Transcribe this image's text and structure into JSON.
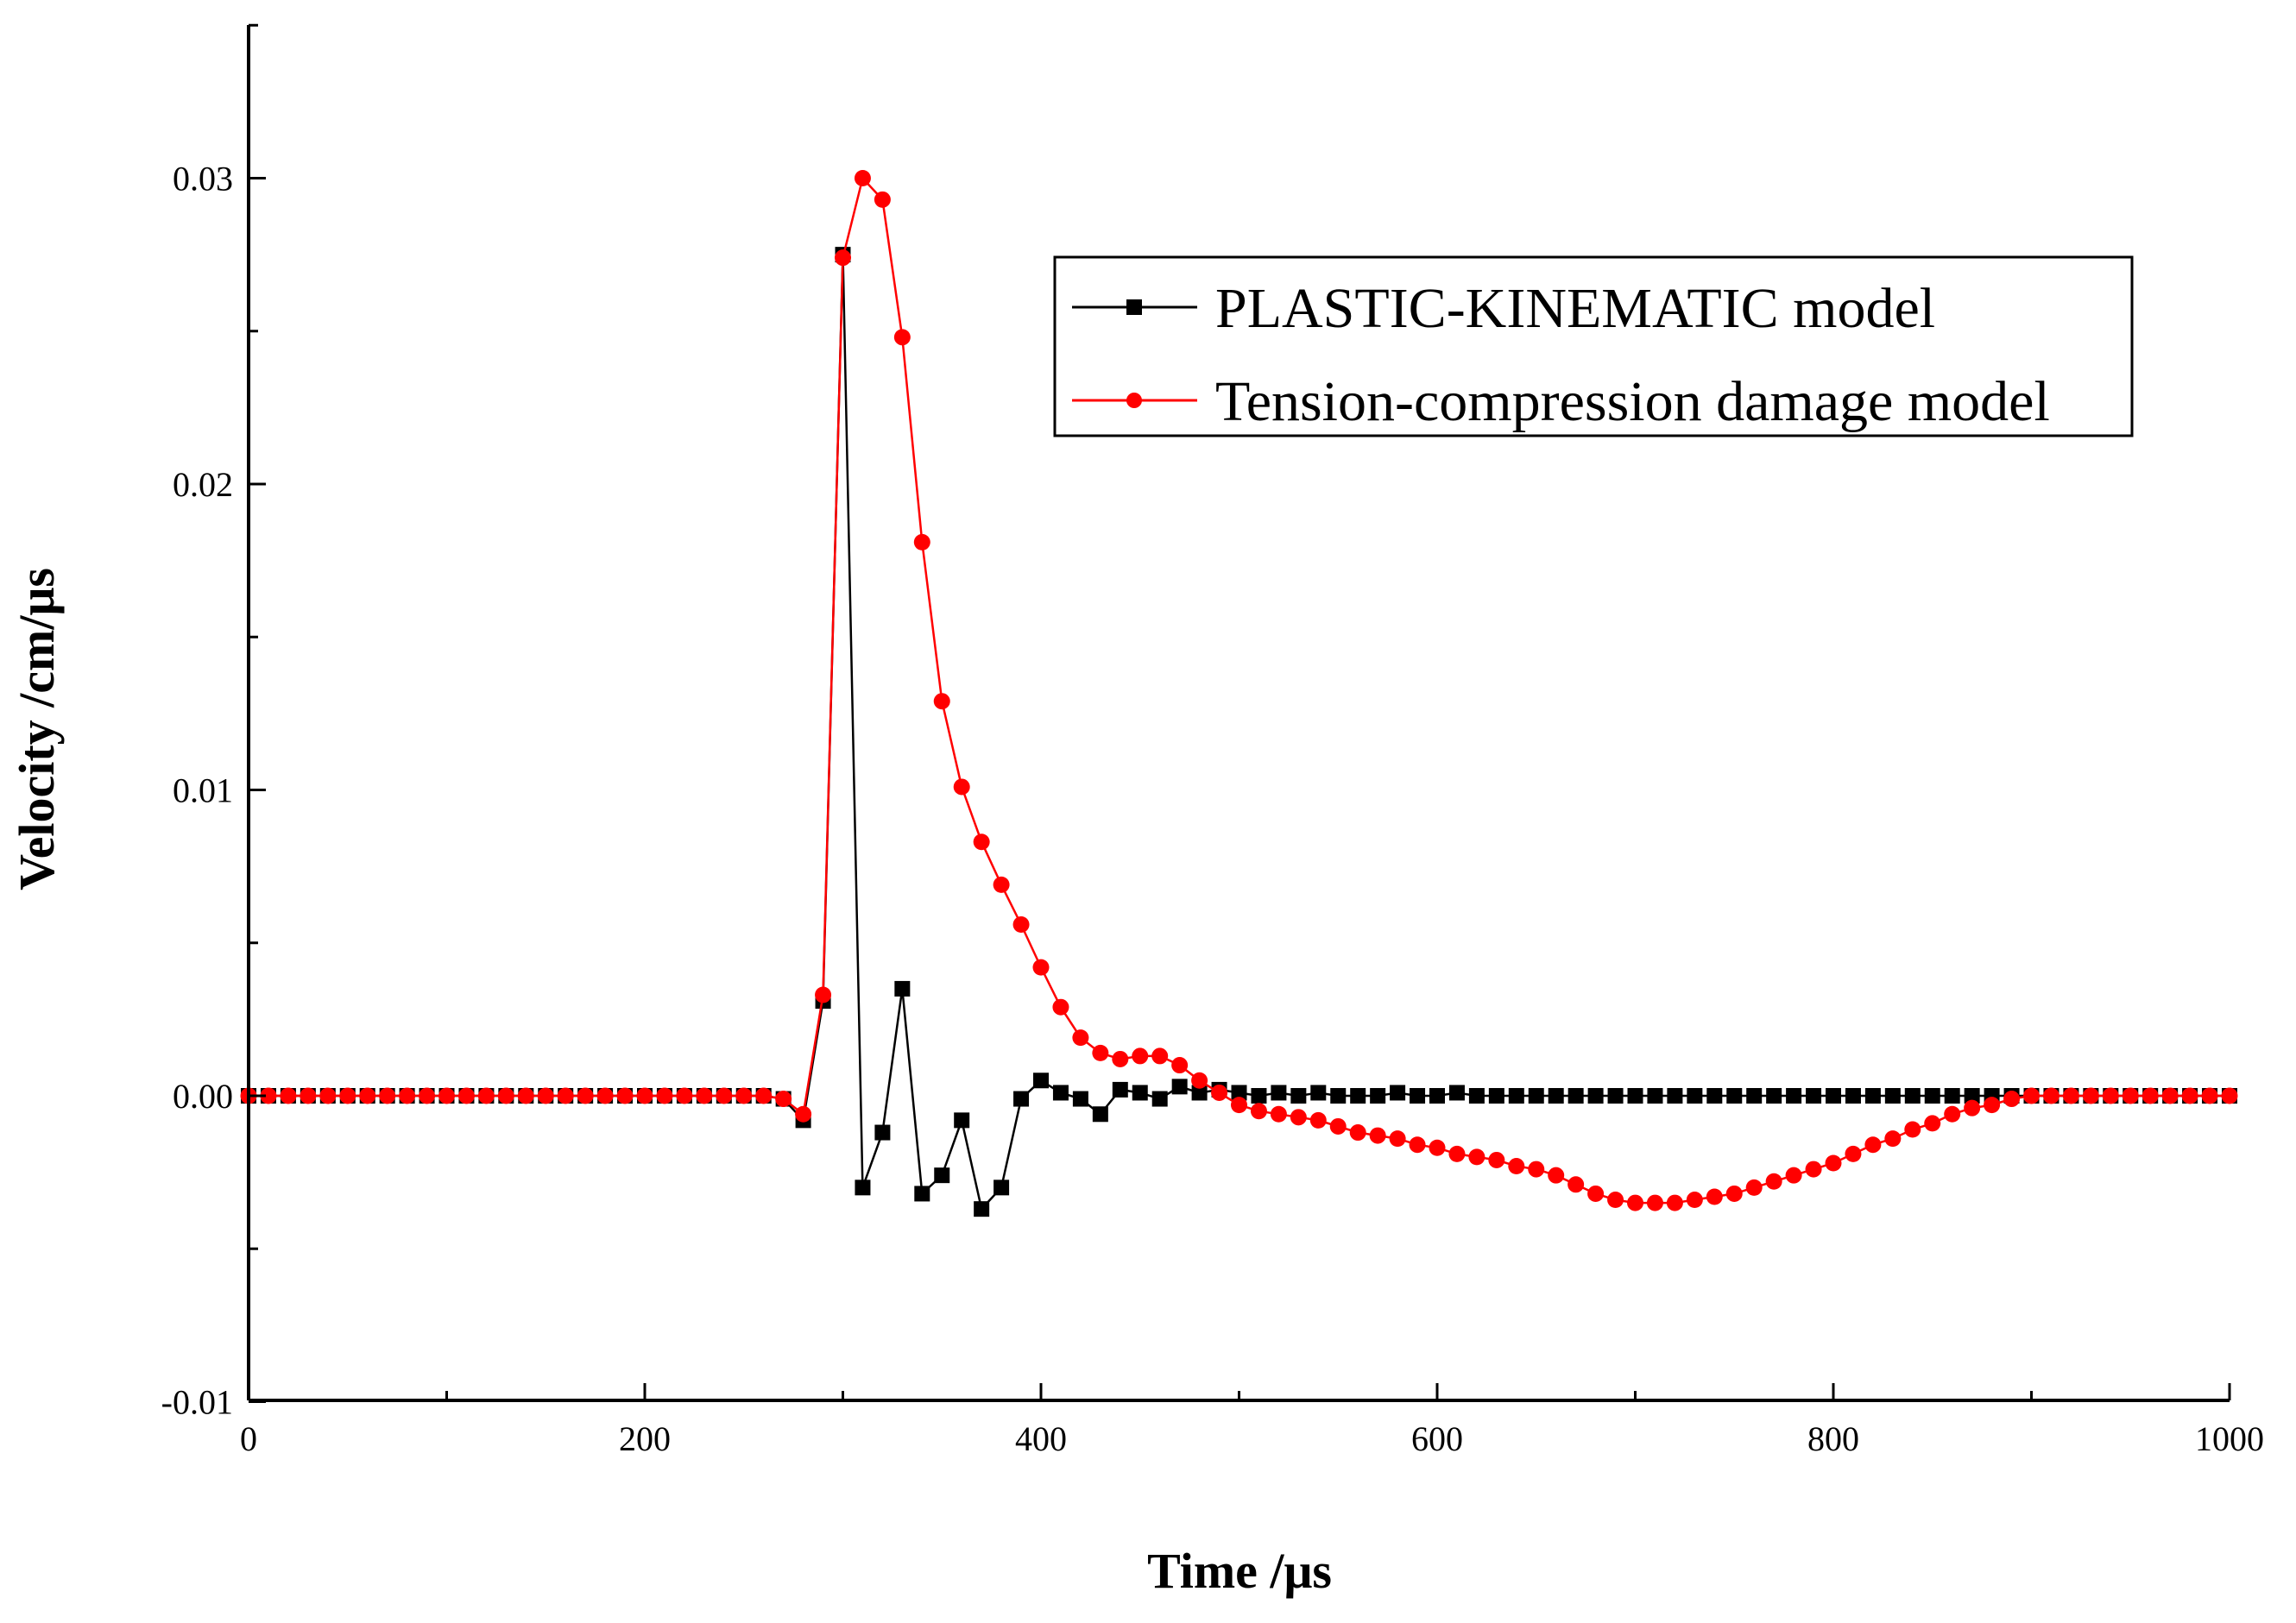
{
  "chart_data": {
    "type": "line",
    "title": "",
    "xlabel": "Time /μs",
    "ylabel": "Velocity /cm/μs",
    "xlim": [
      0,
      1000
    ],
    "ylim": [
      -0.01,
      0.035
    ],
    "xticks": [
      0,
      200,
      400,
      600,
      800,
      1000
    ],
    "xtick_labels": [
      "0",
      "200",
      "400",
      "600",
      "800",
      "1000"
    ],
    "yticks": [
      -0.01,
      0.0,
      0.01,
      0.02,
      0.03
    ],
    "ytick_labels": [
      "-0.01",
      "0.00",
      "0.01",
      "0.02",
      "0.03"
    ],
    "grid": false,
    "legend_position": "top-right",
    "x": [
      0,
      10,
      20,
      30,
      40,
      50,
      60,
      70,
      80,
      90,
      100,
      110,
      120,
      130,
      140,
      150,
      160,
      170,
      180,
      190,
      200,
      210,
      220,
      230,
      240,
      250,
      260,
      270,
      280,
      290,
      300,
      310,
      320,
      330,
      340,
      350,
      360,
      370,
      380,
      390,
      400,
      410,
      420,
      430,
      440,
      450,
      460,
      470,
      480,
      490,
      500,
      510,
      520,
      530,
      540,
      550,
      560,
      570,
      580,
      590,
      600,
      610,
      620,
      630,
      640,
      650,
      660,
      670,
      680,
      690,
      700,
      710,
      720,
      730,
      740,
      750,
      760,
      770,
      780,
      790,
      800,
      810,
      820,
      830,
      840,
      850,
      860,
      870,
      880,
      890,
      900,
      910,
      920,
      930,
      940,
      950,
      960,
      970,
      980,
      990,
      1000
    ],
    "series": [
      {
        "name": "PLASTIC-KINEMATIC model",
        "color": "#000000",
        "marker": "square",
        "values": [
          0,
          0,
          0,
          0,
          0,
          0,
          0,
          0,
          0,
          0,
          0,
          0,
          0,
          0,
          0,
          0,
          0,
          0,
          0,
          0,
          0,
          0,
          0,
          0,
          0,
          0,
          0,
          -0.0001,
          -0.0008,
          0.0031,
          0.0275,
          -0.003,
          -0.0012,
          0.0035,
          -0.0032,
          -0.0026,
          -0.0008,
          -0.0037,
          -0.003,
          -0.0001,
          0.0005,
          0.0001,
          -0.0001,
          -0.0006,
          0.0002,
          0.0001,
          -0.0001,
          0.0003,
          0.0001,
          0.0002,
          0.0001,
          0,
          0.0001,
          0,
          0.0001,
          0,
          0,
          0,
          0.0001,
          0,
          0,
          0.0001,
          0,
          0,
          0,
          0,
          0,
          0,
          0,
          0,
          0,
          0,
          0,
          0,
          0,
          0,
          0,
          0,
          0,
          0,
          0,
          0,
          0,
          0,
          0,
          0,
          0,
          0,
          0,
          0,
          0,
          0,
          0,
          0,
          0,
          0,
          0,
          0,
          0,
          0,
          0
        ]
      },
      {
        "name": "Tension-compression damage model",
        "color": "#ff0000",
        "marker": "circle",
        "values": [
          0,
          0,
          0,
          0,
          0,
          0,
          0,
          0,
          0,
          0,
          0,
          0,
          0,
          0,
          0,
          0,
          0,
          0,
          0,
          0,
          0,
          0,
          0,
          0,
          0,
          0,
          0,
          -0.0001,
          -0.0006,
          0.0033,
          0.0274,
          0.03,
          0.0293,
          0.0248,
          0.0181,
          0.0129,
          0.0101,
          0.0083,
          0.0069,
          0.0056,
          0.0042,
          0.0029,
          0.0019,
          0.0014,
          0.0012,
          0.0013,
          0.0013,
          0.001,
          0.0005,
          0.0001,
          -0.0003,
          -0.0005,
          -0.0006,
          -0.0007,
          -0.0008,
          -0.001,
          -0.0012,
          -0.0013,
          -0.0014,
          -0.0016,
          -0.0017,
          -0.0019,
          -0.002,
          -0.0021,
          -0.0023,
          -0.0024,
          -0.0026,
          -0.0029,
          -0.0032,
          -0.0034,
          -0.0035,
          -0.0035,
          -0.0035,
          -0.0034,
          -0.0033,
          -0.0032,
          -0.003,
          -0.0028,
          -0.0026,
          -0.0024,
          -0.0022,
          -0.0019,
          -0.0016,
          -0.0014,
          -0.0011,
          -0.0009,
          -0.0006,
          -0.0004,
          -0.0003,
          -0.0001,
          0,
          0,
          0,
          0,
          0,
          0,
          0,
          0,
          0,
          0,
          0
        ]
      }
    ]
  }
}
